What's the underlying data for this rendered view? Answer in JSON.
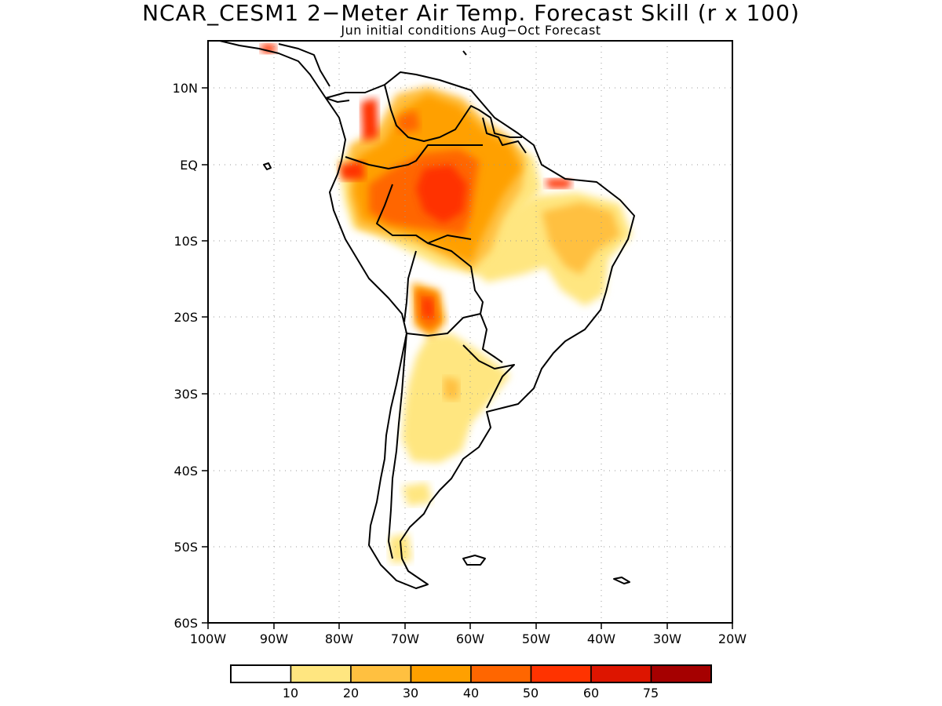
{
  "title": "NCAR_CESM1 2−Meter Air Temp. Forecast Skill (r x 100)",
  "subtitle": "Jun initial conditions  Aug−Oct Forecast",
  "map": {
    "region": "South America",
    "lon_range": [
      -100,
      -20
    ],
    "lat_range": [
      -60,
      16
    ],
    "lon_ticks": [
      "100W",
      "90W",
      "80W",
      "70W",
      "60W",
      "50W",
      "40W",
      "30W",
      "20W"
    ],
    "lat_ticks": [
      "10N",
      "EQ",
      "10S",
      "20S",
      "30S",
      "40S",
      "50S",
      "60S"
    ],
    "gridlines": "dotted",
    "coastlines_color": "#000000"
  },
  "legend": {
    "boundaries": [
      "10",
      "20",
      "30",
      "40",
      "50",
      "60",
      "75"
    ],
    "colors": [
      "#ffffff",
      "#ffe680",
      "#ffc040",
      "#ffa000",
      "#ff6600",
      "#ff3300",
      "#dd1500",
      "#a50000"
    ]
  },
  "skill_regions": [
    {
      "name": "amazon",
      "level": "40-50"
    },
    {
      "name": "central-amazon-core",
      "level": "50-60"
    },
    {
      "name": "colombia-venezuela",
      "level": "30-40"
    },
    {
      "name": "colombia-west",
      "level": "50-60"
    },
    {
      "name": "northeast-brazil",
      "level": "20-30"
    },
    {
      "name": "bolivia",
      "level": "50-60"
    },
    {
      "name": "argentina-north",
      "level": "10-20"
    },
    {
      "name": "patagonia",
      "level": "10-20"
    }
  ]
}
